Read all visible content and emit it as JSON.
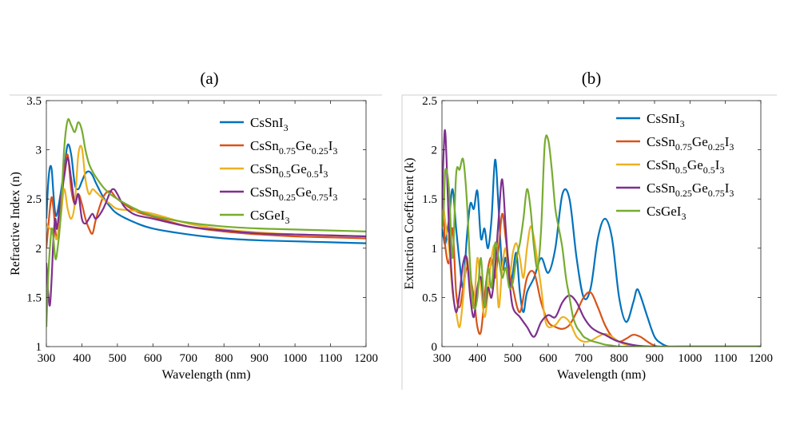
{
  "chart_data": [
    {
      "panel_label": "(a)",
      "type": "line",
      "xlabel": "Wavelength (nm)",
      "ylabel": "Refractive Index (n)",
      "xlim": [
        300,
        1200
      ],
      "ylim": [
        1,
        3.5
      ],
      "xticks": [
        300,
        400,
        500,
        600,
        700,
        800,
        900,
        1000,
        1100,
        1200
      ],
      "yticks": [
        1,
        1.5,
        2,
        2.5,
        3,
        3.5
      ],
      "ytick_labels": [
        "1",
        "1.5",
        "2",
        "2.5",
        "3",
        "3.5"
      ],
      "grid": false,
      "legend_position": "top-right",
      "series": [
        {
          "key": "sn",
          "x": [
            300,
            305,
            310,
            315,
            320,
            325,
            330,
            340,
            350,
            360,
            370,
            380,
            390,
            400,
            410,
            420,
            430,
            440,
            460,
            480,
            500,
            550,
            600,
            700,
            800,
            900,
            1000,
            1100,
            1200
          ],
          "y": [
            2.3,
            2.65,
            2.82,
            2.8,
            2.55,
            2.35,
            2.35,
            2.55,
            2.8,
            3.05,
            2.95,
            2.65,
            2.6,
            2.68,
            2.76,
            2.78,
            2.74,
            2.66,
            2.52,
            2.42,
            2.35,
            2.26,
            2.2,
            2.14,
            2.1,
            2.08,
            2.07,
            2.06,
            2.05
          ]
        },
        {
          "key": "sn75",
          "x": [
            300,
            305,
            310,
            315,
            320,
            325,
            330,
            340,
            350,
            360,
            370,
            380,
            390,
            400,
            410,
            420,
            430,
            440,
            460,
            480,
            500,
            550,
            600,
            700,
            800,
            900,
            1000,
            1100,
            1200
          ],
          "y": [
            2.0,
            2.2,
            2.4,
            2.52,
            2.4,
            2.2,
            2.1,
            2.35,
            2.75,
            2.95,
            2.6,
            2.45,
            2.55,
            2.45,
            2.3,
            2.2,
            2.15,
            2.3,
            2.52,
            2.58,
            2.5,
            2.38,
            2.32,
            2.22,
            2.17,
            2.14,
            2.12,
            2.11,
            2.1
          ]
        },
        {
          "key": "sn50",
          "x": [
            300,
            305,
            310,
            315,
            320,
            325,
            330,
            340,
            350,
            360,
            370,
            380,
            390,
            400,
            410,
            420,
            430,
            440,
            460,
            480,
            500,
            550,
            600,
            700,
            800,
            900,
            1000,
            1100,
            1200
          ],
          "y": [
            2.25,
            2.22,
            2.2,
            2.18,
            2.15,
            2.12,
            2.1,
            2.3,
            2.6,
            2.4,
            2.3,
            2.45,
            2.95,
            3.02,
            2.7,
            2.55,
            2.6,
            2.57,
            2.5,
            2.45,
            2.4,
            2.38,
            2.35,
            2.25,
            2.19,
            2.16,
            2.14,
            2.13,
            2.12
          ]
        },
        {
          "key": "sn25",
          "x": [
            300,
            305,
            310,
            315,
            320,
            325,
            330,
            340,
            350,
            360,
            370,
            380,
            390,
            400,
            410,
            420,
            430,
            440,
            460,
            480,
            490,
            500,
            520,
            550,
            600,
            700,
            800,
            900,
            1000,
            1100,
            1200
          ],
          "y": [
            1.85,
            1.55,
            1.42,
            1.7,
            2.1,
            2.3,
            2.2,
            2.5,
            2.72,
            2.92,
            2.7,
            2.45,
            2.55,
            2.3,
            2.25,
            2.3,
            2.35,
            2.3,
            2.4,
            2.57,
            2.6,
            2.55,
            2.42,
            2.34,
            2.3,
            2.22,
            2.18,
            2.15,
            2.14,
            2.13,
            2.12
          ]
        },
        {
          "key": "ge",
          "x": [
            300,
            305,
            310,
            315,
            320,
            325,
            330,
            340,
            350,
            360,
            370,
            380,
            390,
            400,
            410,
            420,
            430,
            440,
            460,
            480,
            500,
            550,
            600,
            700,
            800,
            900,
            1000,
            1100,
            1200
          ],
          "y": [
            1.2,
            1.7,
            2.0,
            2.2,
            2.1,
            1.9,
            1.95,
            2.3,
            3.0,
            3.3,
            3.25,
            3.18,
            3.28,
            3.2,
            3.0,
            2.86,
            2.78,
            2.72,
            2.62,
            2.55,
            2.5,
            2.4,
            2.33,
            2.26,
            2.22,
            2.2,
            2.19,
            2.18,
            2.17
          ]
        }
      ]
    },
    {
      "panel_label": "(b)",
      "type": "line",
      "xlabel": "Wavelength (nm)",
      "ylabel": "Extinction Coefficient (k)",
      "xlim": [
        300,
        1200
      ],
      "ylim": [
        0,
        2.5
      ],
      "xticks": [
        300,
        400,
        500,
        600,
        700,
        800,
        900,
        1000,
        1100,
        1200
      ],
      "yticks": [
        0,
        0.5,
        1,
        1.5,
        2,
        2.5
      ],
      "ytick_labels": [
        "0",
        "0.5",
        "1",
        "1.5",
        "2",
        "2.5"
      ],
      "grid": false,
      "legend_position": "top-right",
      "series": [
        {
          "key": "sn",
          "x": [
            300,
            305,
            310,
            320,
            330,
            340,
            350,
            360,
            370,
            380,
            390,
            400,
            410,
            420,
            430,
            440,
            450,
            460,
            470,
            480,
            490,
            500,
            510,
            520,
            530,
            540,
            560,
            580,
            600,
            620,
            640,
            660,
            680,
            700,
            720,
            740,
            760,
            780,
            800,
            820,
            840,
            850,
            860,
            880,
            900,
            920,
            940,
            960,
            1000,
            1100,
            1200
          ],
          "y": [
            1.2,
            1.1,
            1.05,
            1.3,
            1.6,
            1.2,
            0.85,
            0.6,
            1.1,
            1.45,
            1.4,
            1.58,
            1.1,
            1.2,
            1.0,
            1.3,
            1.9,
            1.4,
            0.8,
            0.9,
            0.6,
            0.75,
            0.95,
            0.55,
            0.35,
            0.55,
            0.7,
            0.9,
            0.75,
            1.0,
            1.55,
            1.5,
            0.9,
            0.5,
            0.6,
            1.1,
            1.3,
            1.1,
            0.5,
            0.25,
            0.45,
            0.58,
            0.52,
            0.3,
            0.1,
            0.03,
            0.0,
            0.0,
            0.0,
            0.0,
            0.0
          ]
        },
        {
          "key": "sn75",
          "x": [
            300,
            305,
            310,
            320,
            330,
            340,
            350,
            360,
            370,
            380,
            390,
            400,
            410,
            420,
            430,
            440,
            450,
            460,
            470,
            480,
            490,
            500,
            520,
            540,
            560,
            580,
            600,
            620,
            640,
            660,
            680,
            700,
            720,
            740,
            760,
            780,
            800,
            820,
            840,
            860,
            880,
            900,
            920,
            950,
            1000,
            1100,
            1200
          ],
          "y": [
            1.65,
            1.3,
            1.0,
            0.85,
            1.2,
            0.55,
            0.4,
            0.6,
            0.8,
            0.7,
            0.5,
            0.2,
            0.15,
            0.5,
            0.8,
            0.9,
            0.7,
            1.0,
            1.35,
            1.1,
            0.8,
            0.6,
            0.35,
            0.7,
            0.75,
            0.45,
            0.25,
            0.2,
            0.18,
            0.22,
            0.35,
            0.5,
            0.55,
            0.4,
            0.22,
            0.1,
            0.05,
            0.08,
            0.12,
            0.1,
            0.05,
            0.01,
            0.0,
            0.0,
            0.0,
            0.0,
            0.0
          ]
        },
        {
          "key": "sn50",
          "x": [
            300,
            305,
            310,
            320,
            330,
            340,
            350,
            360,
            370,
            380,
            390,
            400,
            410,
            420,
            430,
            440,
            450,
            460,
            470,
            480,
            490,
            500,
            510,
            520,
            530,
            540,
            550,
            560,
            570,
            580,
            590,
            600,
            620,
            640,
            660,
            680,
            700,
            720,
            740,
            760,
            780,
            800,
            820,
            860,
            900,
            1000,
            1100,
            1200
          ],
          "y": [
            1.55,
            1.4,
            1.25,
            1.0,
            0.55,
            0.35,
            0.2,
            0.5,
            0.9,
            0.6,
            0.4,
            0.9,
            0.6,
            0.3,
            0.55,
            0.9,
            1.0,
            0.4,
            0.8,
            1.0,
            0.7,
            0.95,
            1.05,
            0.9,
            0.7,
            1.0,
            1.22,
            1.1,
            0.85,
            0.6,
            0.3,
            0.2,
            0.22,
            0.3,
            0.25,
            0.1,
            0.05,
            0.06,
            0.1,
            0.13,
            0.1,
            0.05,
            0.02,
            0.0,
            0.0,
            0.0,
            0.0,
            0.0
          ]
        },
        {
          "key": "sn25",
          "x": [
            300,
            305,
            310,
            320,
            330,
            340,
            350,
            360,
            370,
            380,
            390,
            400,
            410,
            420,
            430,
            440,
            450,
            460,
            470,
            480,
            490,
            500,
            520,
            540,
            560,
            580,
            600,
            620,
            640,
            660,
            680,
            700,
            720,
            740,
            760,
            780,
            800,
            850,
            900,
            1000,
            1100,
            1200
          ],
          "y": [
            1.4,
            2.0,
            2.15,
            1.2,
            0.6,
            0.35,
            0.55,
            0.85,
            0.9,
            0.5,
            0.3,
            0.6,
            0.7,
            0.4,
            0.6,
            0.5,
            0.8,
            1.3,
            1.7,
            1.2,
            0.7,
            0.4,
            0.3,
            0.2,
            0.1,
            0.25,
            0.32,
            0.3,
            0.45,
            0.52,
            0.45,
            0.3,
            0.2,
            0.15,
            0.12,
            0.08,
            0.05,
            0.01,
            0.0,
            0.0,
            0.0,
            0.0
          ]
        },
        {
          "key": "ge",
          "x": [
            300,
            305,
            310,
            320,
            330,
            340,
            350,
            360,
            370,
            380,
            390,
            400,
            410,
            420,
            430,
            440,
            450,
            460,
            470,
            480,
            490,
            500,
            510,
            520,
            530,
            540,
            550,
            560,
            570,
            580,
            590,
            600,
            610,
            620,
            630,
            640,
            650,
            660,
            670,
            680,
            690,
            700,
            710,
            720,
            740,
            760,
            780,
            800,
            850,
            900,
            1000,
            1100,
            1200
          ],
          "y": [
            1.2,
            1.4,
            1.8,
            1.6,
            0.9,
            1.75,
            1.8,
            1.9,
            1.5,
            0.8,
            0.4,
            0.5,
            0.9,
            0.4,
            0.8,
            0.6,
            1.05,
            0.9,
            0.7,
            0.8,
            0.6,
            0.65,
            0.9,
            1.05,
            1.3,
            1.6,
            1.4,
            1.0,
            0.8,
            1.2,
            2.05,
            2.1,
            1.8,
            1.4,
            1.2,
            1.0,
            0.7,
            0.5,
            0.3,
            0.2,
            0.15,
            0.1,
            0.08,
            0.06,
            0.04,
            0.02,
            0.01,
            0.0,
            0.0,
            0.0,
            0.0,
            0.0,
            0.0
          ]
        }
      ]
    }
  ],
  "legend": [
    {
      "key": "sn",
      "color": "#0072BD",
      "parts": [
        [
          "CsSnI",
          ""
        ],
        [
          "3",
          "sub"
        ]
      ]
    },
    {
      "key": "sn75",
      "color": "#D95319",
      "parts": [
        [
          "CsSn",
          ""
        ],
        [
          "0.75",
          "sub"
        ],
        [
          "Ge",
          ""
        ],
        [
          "0.25",
          "sub"
        ],
        [
          "I",
          ""
        ],
        [
          "3",
          "sub"
        ]
      ]
    },
    {
      "key": "sn50",
      "color": "#EDB120",
      "parts": [
        [
          "CsSn",
          ""
        ],
        [
          "0.5",
          "sub"
        ],
        [
          "Ge",
          ""
        ],
        [
          "0.5",
          "sub"
        ],
        [
          "I",
          ""
        ],
        [
          "3",
          "sub"
        ]
      ]
    },
    {
      "key": "sn25",
      "color": "#7E2F8E",
      "parts": [
        [
          "CsSn",
          ""
        ],
        [
          "0.25",
          "sub"
        ],
        [
          "Ge",
          ""
        ],
        [
          "0.75",
          "sub"
        ],
        [
          "I",
          ""
        ],
        [
          "3",
          "sub"
        ]
      ]
    },
    {
      "key": "ge",
      "color": "#77AC30",
      "parts": [
        [
          "CsGeI",
          ""
        ],
        [
          "3",
          "sub"
        ]
      ]
    }
  ]
}
